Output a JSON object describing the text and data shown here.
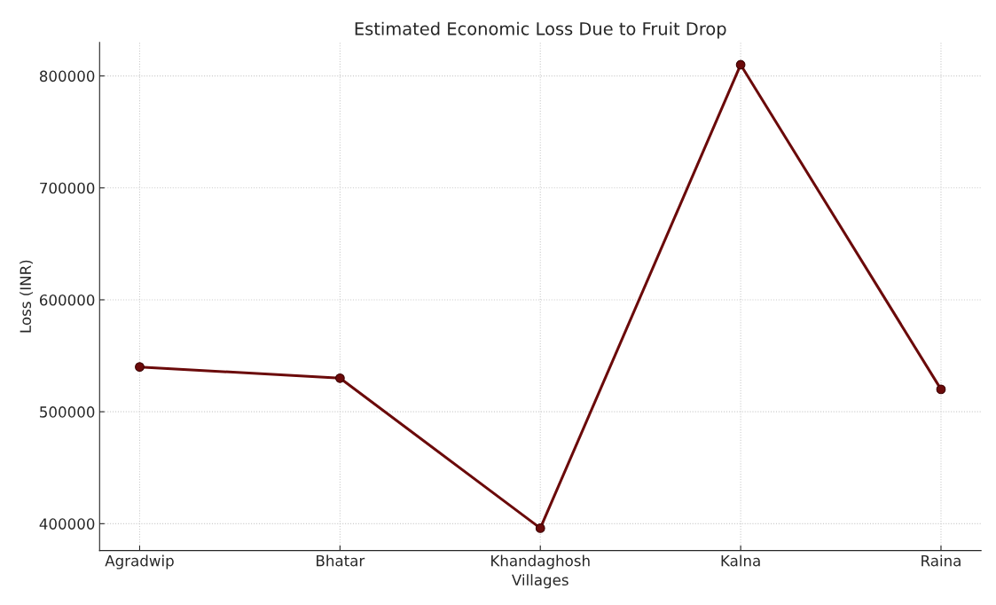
{
  "chart_data": {
    "type": "line",
    "title": "Estimated Economic Loss Due to Fruit Drop",
    "xlabel": "Villages",
    "ylabel": "Loss (INR)",
    "categories": [
      "Agradwip",
      "Bhatar",
      "Khandaghosh",
      "Kalna",
      "Raina"
    ],
    "series": [
      {
        "color": "#6b0a0a",
        "values": [
          540000,
          530000,
          396000,
          810000,
          520000
        ]
      }
    ],
    "ylim": [
      376000,
      830000
    ],
    "yticks": [
      400000,
      500000,
      600000,
      700000,
      800000
    ],
    "grid": true,
    "marker": "circle",
    "line_style": "solid"
  }
}
